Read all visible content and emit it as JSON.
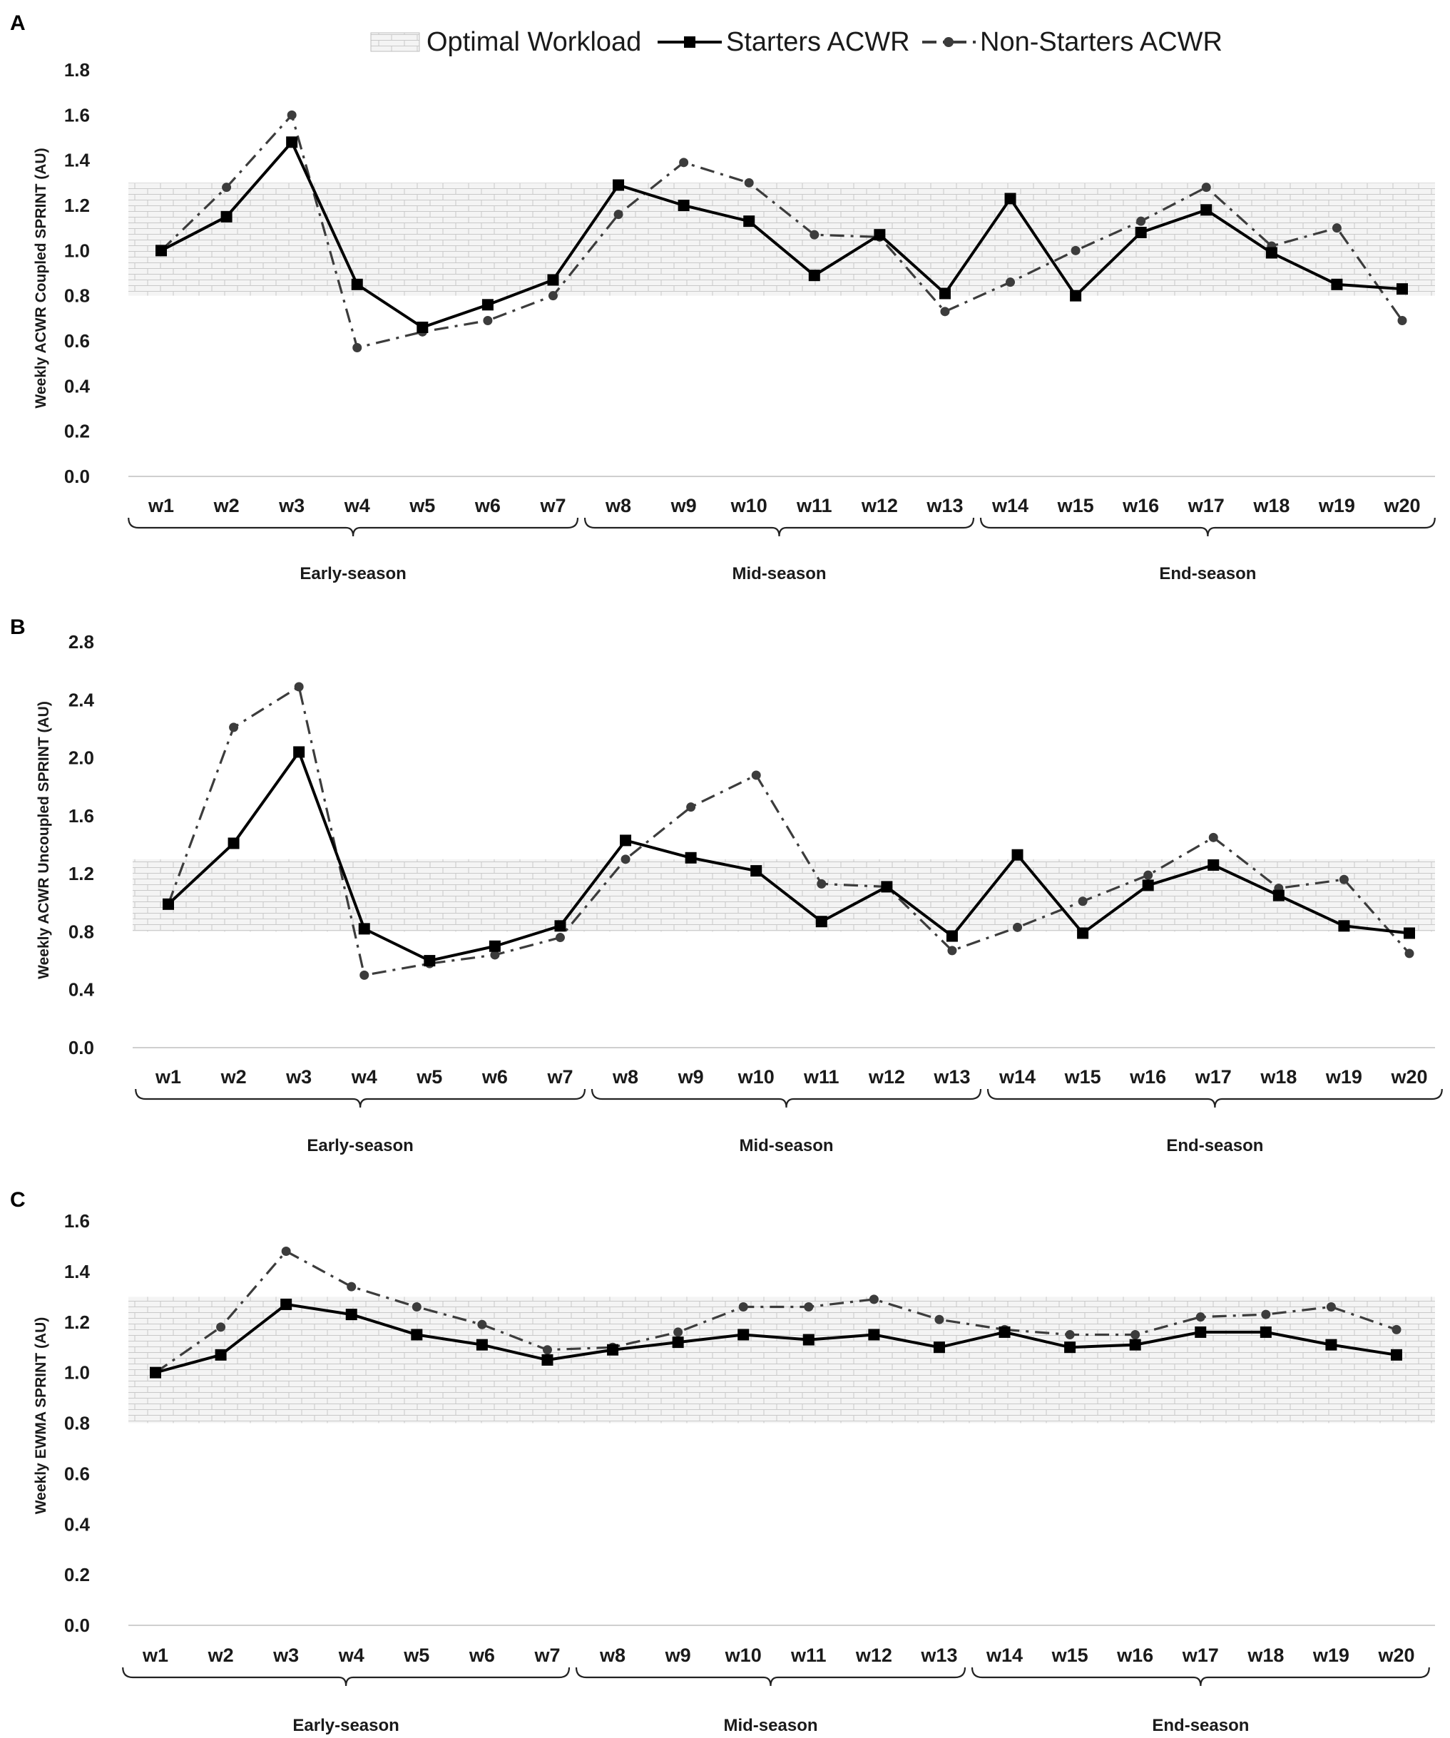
{
  "legend": {
    "optimal": "Optimal Workload",
    "starters": "Starters ACWR",
    "nonstarters": "Non-Starters ACWR"
  },
  "colors": {
    "starters": "#000000",
    "nonstarters": "#3c3c3c",
    "band": "#d9d9d9",
    "axis": "#cfcfcf"
  },
  "chart_data": [
    {
      "panel": "A",
      "type": "line",
      "ylabel": "Weekly ACWR Coupled SPRINT (AU)",
      "ylim": [
        0.0,
        1.8
      ],
      "yticks": [
        "0.0",
        "0.2",
        "0.4",
        "0.6",
        "0.8",
        "1.0",
        "1.2",
        "1.4",
        "1.6",
        "1.8"
      ],
      "band": [
        0.8,
        1.3
      ],
      "categories": [
        "w1",
        "w2",
        "w3",
        "w4",
        "w5",
        "w6",
        "w7",
        "w8",
        "w9",
        "w10",
        "w11",
        "w12",
        "w13",
        "w14",
        "w15",
        "w16",
        "w17",
        "w18",
        "w19",
        "w20"
      ],
      "series": [
        {
          "name": "Starters ACWR",
          "values": [
            1.0,
            1.15,
            1.48,
            0.85,
            0.66,
            0.76,
            0.87,
            1.29,
            1.2,
            1.13,
            0.89,
            1.07,
            0.81,
            1.23,
            0.8,
            1.08,
            1.18,
            0.99,
            0.85,
            0.83
          ]
        },
        {
          "name": "Non-Starters ACWR",
          "values": [
            1.0,
            1.28,
            1.6,
            0.57,
            0.64,
            0.69,
            0.8,
            1.16,
            1.39,
            1.3,
            1.07,
            1.06,
            0.73,
            0.86,
            1.0,
            1.13,
            1.28,
            1.02,
            1.1,
            0.69
          ]
        }
      ],
      "phases": [
        "Early-season",
        "Mid-season",
        "End-season"
      ]
    },
    {
      "panel": "B",
      "type": "line",
      "ylabel": "Weekly ACWR Uncoupled SPRINT (AU)",
      "ylim": [
        0.0,
        2.8
      ],
      "yticks": [
        "0.0",
        "0.4",
        "0.8",
        "1.2",
        "1.6",
        "2.0",
        "2.4",
        "2.8"
      ],
      "band": [
        0.8,
        1.3
      ],
      "categories": [
        "w1",
        "w2",
        "w3",
        "w4",
        "w5",
        "w6",
        "w7",
        "w8",
        "w9",
        "w10",
        "w11",
        "w12",
        "w13",
        "w14",
        "w15",
        "w16",
        "w17",
        "w18",
        "w19",
        "w20"
      ],
      "series": [
        {
          "name": "Starters ACWR",
          "values": [
            0.99,
            1.41,
            2.04,
            0.82,
            0.6,
            0.7,
            0.84,
            1.43,
            1.31,
            1.22,
            0.87,
            1.11,
            0.77,
            1.33,
            0.79,
            1.12,
            1.26,
            1.05,
            0.84,
            0.79
          ]
        },
        {
          "name": "Non-Starters ACWR",
          "values": [
            0.99,
            2.21,
            2.49,
            0.5,
            0.58,
            0.64,
            0.76,
            1.3,
            1.66,
            1.88,
            1.13,
            1.11,
            0.67,
            0.83,
            1.01,
            1.19,
            1.45,
            1.1,
            1.16,
            0.65
          ]
        }
      ],
      "phases": [
        "Early-season",
        "Mid-season",
        "End-season"
      ]
    },
    {
      "panel": "C",
      "type": "line",
      "ylabel": "Weekly EWMA SPRINT (AU)",
      "ylim": [
        0.0,
        1.6
      ],
      "yticks": [
        "0.0",
        "0.2",
        "0.4",
        "0.6",
        "0.8",
        "1.0",
        "1.2",
        "1.4",
        "1.6"
      ],
      "band": [
        0.8,
        1.3
      ],
      "categories": [
        "w1",
        "w2",
        "w3",
        "w4",
        "w5",
        "w6",
        "w7",
        "w8",
        "w9",
        "w10",
        "w11",
        "w12",
        "w13",
        "w14",
        "w15",
        "w16",
        "w17",
        "w18",
        "w19",
        "w20"
      ],
      "series": [
        {
          "name": "Starters ACWR",
          "values": [
            1.0,
            1.07,
            1.27,
            1.23,
            1.15,
            1.11,
            1.05,
            1.09,
            1.12,
            1.15,
            1.13,
            1.15,
            1.1,
            1.16,
            1.1,
            1.11,
            1.16,
            1.16,
            1.11,
            1.07
          ]
        },
        {
          "name": "Non-Starters ACWR",
          "values": [
            1.0,
            1.18,
            1.48,
            1.34,
            1.26,
            1.19,
            1.09,
            1.1,
            1.16,
            1.26,
            1.26,
            1.29,
            1.21,
            1.17,
            1.15,
            1.15,
            1.22,
            1.23,
            1.26,
            1.17
          ]
        }
      ],
      "phases": [
        "Early-season",
        "Mid-season",
        "End-season"
      ]
    }
  ]
}
